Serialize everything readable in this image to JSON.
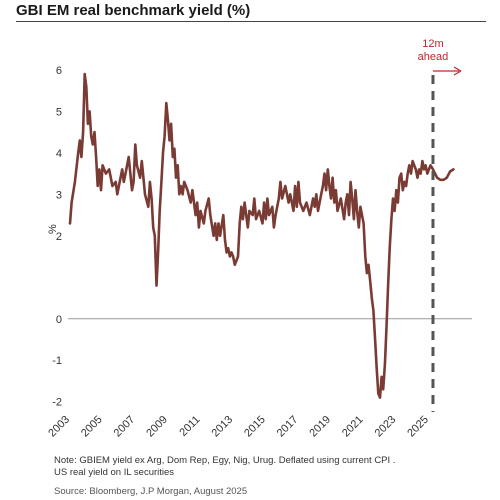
{
  "title": "GBI EM real benchmark yield (%)",
  "note_line1": "Note: GBIEM yield ex Arg, Dom Rep, Egy, Nig, Urug. Deflated using current CPI .",
  "note_line2": "US real yield on IL securities",
  "source": "Source: Bloomberg, J.P Morgan, August 2025",
  "colors": {
    "series": "#7a3b34",
    "annotation": "#c0262d",
    "zero_line": "#999999",
    "forecast_line": "#555555"
  },
  "chart_data": {
    "type": "line",
    "title": "GBI EM real benchmark yield (%)",
    "xlabel": "",
    "ylabel": "%",
    "xlim": [
      2003,
      2026.6
    ],
    "ylim": [
      -2.2,
      6.6
    ],
    "x_ticks": [
      "2003",
      "2005",
      "2007",
      "2009",
      "2011",
      "2013",
      "2015",
      "2017",
      "2019",
      "2021",
      "2023",
      "2025"
    ],
    "y_ticks": [
      "6",
      "5",
      "4",
      "3",
      "2",
      "0",
      "-1",
      "-2"
    ],
    "y_tick_values": [
      6,
      5,
      4,
      3,
      2,
      0,
      -1,
      -2
    ],
    "zero_line": 0,
    "forecast_marker": {
      "x": 2025.25,
      "label_line1": "12m",
      "label_line2": "ahead"
    },
    "series": [
      {
        "values": [
          [
            2003.0,
            2.3
          ],
          [
            2003.1,
            2.8
          ],
          [
            2003.3,
            3.3
          ],
          [
            2003.5,
            4.0
          ],
          [
            2003.6,
            4.3
          ],
          [
            2003.7,
            3.9
          ],
          [
            2003.8,
            4.5
          ],
          [
            2003.9,
            5.9
          ],
          [
            2004.0,
            5.6
          ],
          [
            2004.1,
            4.7
          ],
          [
            2004.2,
            5.0
          ],
          [
            2004.3,
            4.4
          ],
          [
            2004.4,
            4.2
          ],
          [
            2004.5,
            4.5
          ],
          [
            2004.6,
            3.9
          ],
          [
            2004.7,
            3.2
          ],
          [
            2004.8,
            3.6
          ],
          [
            2004.9,
            3.1
          ],
          [
            2005.0,
            3.7
          ],
          [
            2005.2,
            3.5
          ],
          [
            2005.4,
            3.6
          ],
          [
            2005.6,
            3.2
          ],
          [
            2005.8,
            3.3
          ],
          [
            2005.9,
            3.0
          ],
          [
            2006.0,
            3.2
          ],
          [
            2006.2,
            3.6
          ],
          [
            2006.3,
            3.3
          ],
          [
            2006.4,
            3.5
          ],
          [
            2006.6,
            3.9
          ],
          [
            2006.8,
            3.1
          ],
          [
            2006.9,
            3.3
          ],
          [
            2007.0,
            4.2
          ],
          [
            2007.1,
            3.7
          ],
          [
            2007.3,
            3.4
          ],
          [
            2007.4,
            3.8
          ],
          [
            2007.6,
            3.0
          ],
          [
            2007.8,
            2.7
          ],
          [
            2007.9,
            3.3
          ],
          [
            2008.0,
            2.9
          ],
          [
            2008.1,
            2.2
          ],
          [
            2008.2,
            2.0
          ],
          [
            2008.3,
            0.8
          ],
          [
            2008.4,
            1.6
          ],
          [
            2008.5,
            2.6
          ],
          [
            2008.6,
            3.3
          ],
          [
            2008.7,
            4.0
          ],
          [
            2008.8,
            4.4
          ],
          [
            2008.9,
            5.2
          ],
          [
            2009.0,
            4.8
          ],
          [
            2009.1,
            4.3
          ],
          [
            2009.2,
            4.7
          ],
          [
            2009.3,
            3.9
          ],
          [
            2009.4,
            4.1
          ],
          [
            2009.5,
            3.4
          ],
          [
            2009.6,
            3.7
          ],
          [
            2009.7,
            3.0
          ],
          [
            2009.8,
            3.2
          ],
          [
            2009.9,
            3.0
          ],
          [
            2010.0,
            3.3
          ],
          [
            2010.2,
            3.1
          ],
          [
            2010.4,
            2.8
          ],
          [
            2010.5,
            3.1
          ],
          [
            2010.7,
            2.5
          ],
          [
            2010.8,
            2.8
          ],
          [
            2010.9,
            2.2
          ],
          [
            2011.0,
            2.6
          ],
          [
            2011.2,
            2.3
          ],
          [
            2011.3,
            2.6
          ],
          [
            2011.5,
            2.9
          ],
          [
            2011.6,
            2.5
          ],
          [
            2011.8,
            2.0
          ],
          [
            2011.9,
            2.3
          ],
          [
            2012.0,
            1.9
          ],
          [
            2012.1,
            2.3
          ],
          [
            2012.2,
            2.0
          ],
          [
            2012.4,
            2.5
          ],
          [
            2012.5,
            1.9
          ],
          [
            2012.6,
            1.6
          ],
          [
            2012.7,
            1.7
          ],
          [
            2012.8,
            1.5
          ],
          [
            2012.9,
            1.6
          ],
          [
            2013.0,
            1.5
          ],
          [
            2013.1,
            1.3
          ],
          [
            2013.3,
            1.5
          ],
          [
            2013.4,
            2.3
          ],
          [
            2013.5,
            2.7
          ],
          [
            2013.6,
            2.4
          ],
          [
            2013.7,
            2.8
          ],
          [
            2013.9,
            2.2
          ],
          [
            2014.0,
            2.6
          ],
          [
            2014.2,
            2.5
          ],
          [
            2014.3,
            2.9
          ],
          [
            2014.4,
            2.4
          ],
          [
            2014.6,
            2.6
          ],
          [
            2014.8,
            2.3
          ],
          [
            2014.9,
            2.8
          ],
          [
            2015.0,
            2.4
          ],
          [
            2015.1,
            2.9
          ],
          [
            2015.2,
            2.5
          ],
          [
            2015.4,
            2.7
          ],
          [
            2015.5,
            2.2
          ],
          [
            2015.6,
            2.5
          ],
          [
            2015.8,
            2.9
          ],
          [
            2015.9,
            3.3
          ],
          [
            2016.0,
            2.9
          ],
          [
            2016.2,
            3.2
          ],
          [
            2016.4,
            2.8
          ],
          [
            2016.5,
            3.0
          ],
          [
            2016.7,
            2.6
          ],
          [
            2016.8,
            3.2
          ],
          [
            2016.9,
            2.7
          ],
          [
            2017.0,
            3.3
          ],
          [
            2017.1,
            2.8
          ],
          [
            2017.3,
            2.6
          ],
          [
            2017.5,
            2.8
          ],
          [
            2017.7,
            2.5
          ],
          [
            2017.9,
            2.9
          ],
          [
            2018.0,
            2.7
          ],
          [
            2018.1,
            3.0
          ],
          [
            2018.2,
            2.6
          ],
          [
            2018.4,
            3.0
          ],
          [
            2018.5,
            3.2
          ],
          [
            2018.6,
            3.5
          ],
          [
            2018.7,
            3.1
          ],
          [
            2018.8,
            3.6
          ],
          [
            2018.9,
            3.2
          ],
          [
            2019.0,
            2.9
          ],
          [
            2019.1,
            3.4
          ],
          [
            2019.2,
            2.8
          ],
          [
            2019.3,
            3.1
          ],
          [
            2019.4,
            2.6
          ],
          [
            2019.6,
            2.9
          ],
          [
            2019.8,
            2.4
          ],
          [
            2019.9,
            2.8
          ],
          [
            2020.0,
            3.0
          ],
          [
            2020.1,
            2.5
          ],
          [
            2020.2,
            3.3
          ],
          [
            2020.3,
            2.9
          ],
          [
            2020.4,
            2.4
          ],
          [
            2020.5,
            3.1
          ],
          [
            2020.6,
            2.6
          ],
          [
            2020.7,
            2.2
          ],
          [
            2020.8,
            2.7
          ],
          [
            2020.9,
            2.5
          ],
          [
            2021.0,
            2.3
          ],
          [
            2021.1,
            1.5
          ],
          [
            2021.2,
            1.1
          ],
          [
            2021.3,
            1.3
          ],
          [
            2021.4,
            0.9
          ],
          [
            2021.5,
            0.5
          ],
          [
            2021.6,
            0.2
          ],
          [
            2021.7,
            -0.5
          ],
          [
            2021.8,
            -1.2
          ],
          [
            2021.9,
            -1.8
          ],
          [
            2022.0,
            -1.9
          ],
          [
            2022.1,
            -1.4
          ],
          [
            2022.2,
            -1.7
          ],
          [
            2022.3,
            -1.1
          ],
          [
            2022.4,
            -0.2
          ],
          [
            2022.5,
            0.8
          ],
          [
            2022.6,
            1.7
          ],
          [
            2022.7,
            2.4
          ],
          [
            2022.8,
            2.9
          ],
          [
            2022.9,
            2.6
          ],
          [
            2023.0,
            3.1
          ],
          [
            2023.1,
            2.8
          ],
          [
            2023.2,
            3.4
          ],
          [
            2023.3,
            3.5
          ],
          [
            2023.4,
            3.1
          ],
          [
            2023.5,
            3.3
          ],
          [
            2023.6,
            3.2
          ],
          [
            2023.7,
            3.5
          ],
          [
            2023.8,
            3.7
          ],
          [
            2023.9,
            3.5
          ],
          [
            2024.0,
            3.8
          ],
          [
            2024.1,
            3.7
          ],
          [
            2024.2,
            3.6
          ],
          [
            2024.3,
            3.4
          ],
          [
            2024.4,
            3.6
          ],
          [
            2024.5,
            3.5
          ],
          [
            2024.6,
            3.8
          ],
          [
            2024.7,
            3.6
          ],
          [
            2024.8,
            3.7
          ],
          [
            2024.9,
            3.5
          ],
          [
            2025.0,
            3.6
          ],
          [
            2025.1,
            3.7
          ],
          [
            2025.25,
            3.6
          ],
          [
            2025.5,
            3.4
          ],
          [
            2025.7,
            3.35
          ],
          [
            2025.9,
            3.35
          ],
          [
            2026.1,
            3.4
          ],
          [
            2026.3,
            3.55
          ],
          [
            2026.5,
            3.6
          ]
        ]
      }
    ]
  }
}
